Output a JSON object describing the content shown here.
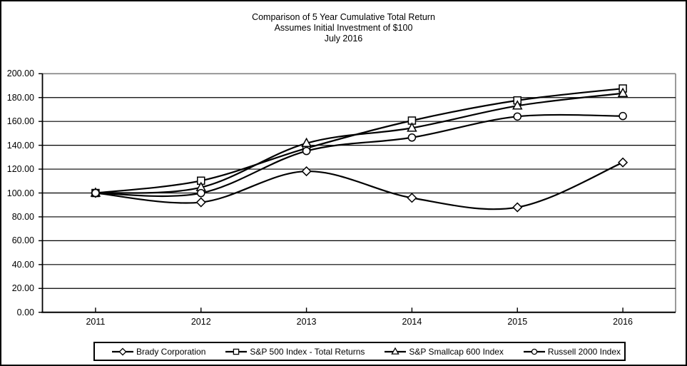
{
  "chart_data": {
    "type": "line",
    "title_lines": [
      "Comparison of 5 Year Cumulative Total Return",
      "Assumes Initial Investment of $100",
      "July 2016"
    ],
    "x_labels": [
      "2011",
      "2012",
      "2013",
      "2014",
      "2015",
      "2016"
    ],
    "y_tick_labels": [
      "200.00",
      "180.00",
      "160.00",
      "140.00",
      "120.00",
      "100.00",
      "80.00",
      "60.00",
      "40.00",
      "20.00",
      "0.00"
    ],
    "ylim": [
      0,
      200
    ],
    "y_step": 20,
    "grid": "horizontal",
    "legend_position": "bottom",
    "line_smoothing": true,
    "colors": {
      "line": "#000000",
      "marker_fill": "#ffffff",
      "plot_border": "#808080",
      "background": "#ffffff"
    },
    "series": [
      {
        "name": "Brady Corporation",
        "marker": "diamond",
        "values": [
          100.0,
          92.2,
          118.2,
          95.9,
          88.0,
          125.6
        ]
      },
      {
        "name": "S&P 500 Index - Total Returns",
        "marker": "square",
        "values": [
          100.0,
          110.3,
          137.5,
          160.7,
          177.6,
          187.6
        ]
      },
      {
        "name": "S&P Smallcap 600 Index",
        "marker": "triangle",
        "values": [
          100.0,
          104.7,
          141.7,
          154.5,
          173.1,
          183.6
        ]
      },
      {
        "name": "Russell 2000 Index",
        "marker": "circle",
        "values": [
          100.0,
          99.9,
          135.2,
          146.5,
          164.1,
          164.5
        ]
      }
    ]
  }
}
